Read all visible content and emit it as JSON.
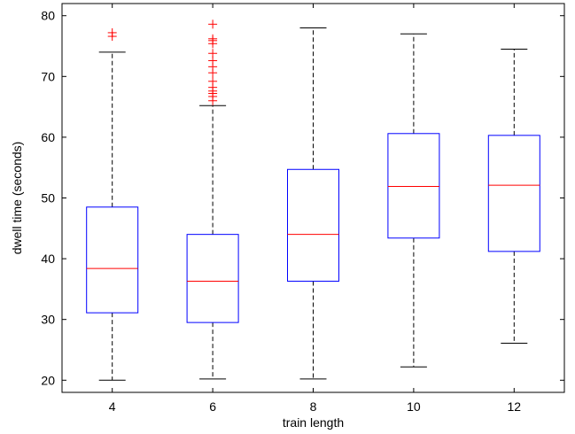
{
  "chart_data": {
    "type": "box",
    "xlabel": "train length",
    "ylabel": "dwell time (seconds)",
    "ylim": [
      18,
      82
    ],
    "yticks": [
      20,
      30,
      40,
      50,
      60,
      70,
      80
    ],
    "grid": false,
    "colors": {
      "box": "#0000ff",
      "median": "#ff0000",
      "whisker": "#000000",
      "outlier": "#ff0000"
    },
    "categories": [
      "4",
      "6",
      "8",
      "10",
      "12"
    ],
    "boxes": [
      {
        "category": "4",
        "whisker_low": 20.0,
        "q1": 31.1,
        "median": 38.4,
        "q3": 48.5,
        "whisker_high": 74.0,
        "outliers": [
          76.6,
          77.2
        ]
      },
      {
        "category": "6",
        "whisker_low": 20.2,
        "q1": 29.5,
        "median": 36.3,
        "q3": 44.0,
        "whisker_high": 65.2,
        "outliers": [
          66.0,
          66.7,
          67.2,
          67.6,
          68.2,
          69.2,
          70.6,
          71.6,
          72.6,
          73.8,
          75.4,
          75.9,
          76.2,
          78.6
        ]
      },
      {
        "category": "8",
        "whisker_low": 20.2,
        "q1": 36.3,
        "median": 44.0,
        "q3": 54.7,
        "whisker_high": 78.0,
        "outliers": []
      },
      {
        "category": "10",
        "whisker_low": 22.2,
        "q1": 43.4,
        "median": 51.9,
        "q3": 60.6,
        "whisker_high": 77.0,
        "outliers": []
      },
      {
        "category": "12",
        "whisker_low": 26.1,
        "q1": 41.2,
        "median": 52.1,
        "q3": 60.3,
        "whisker_high": 74.5,
        "outliers": []
      }
    ]
  }
}
